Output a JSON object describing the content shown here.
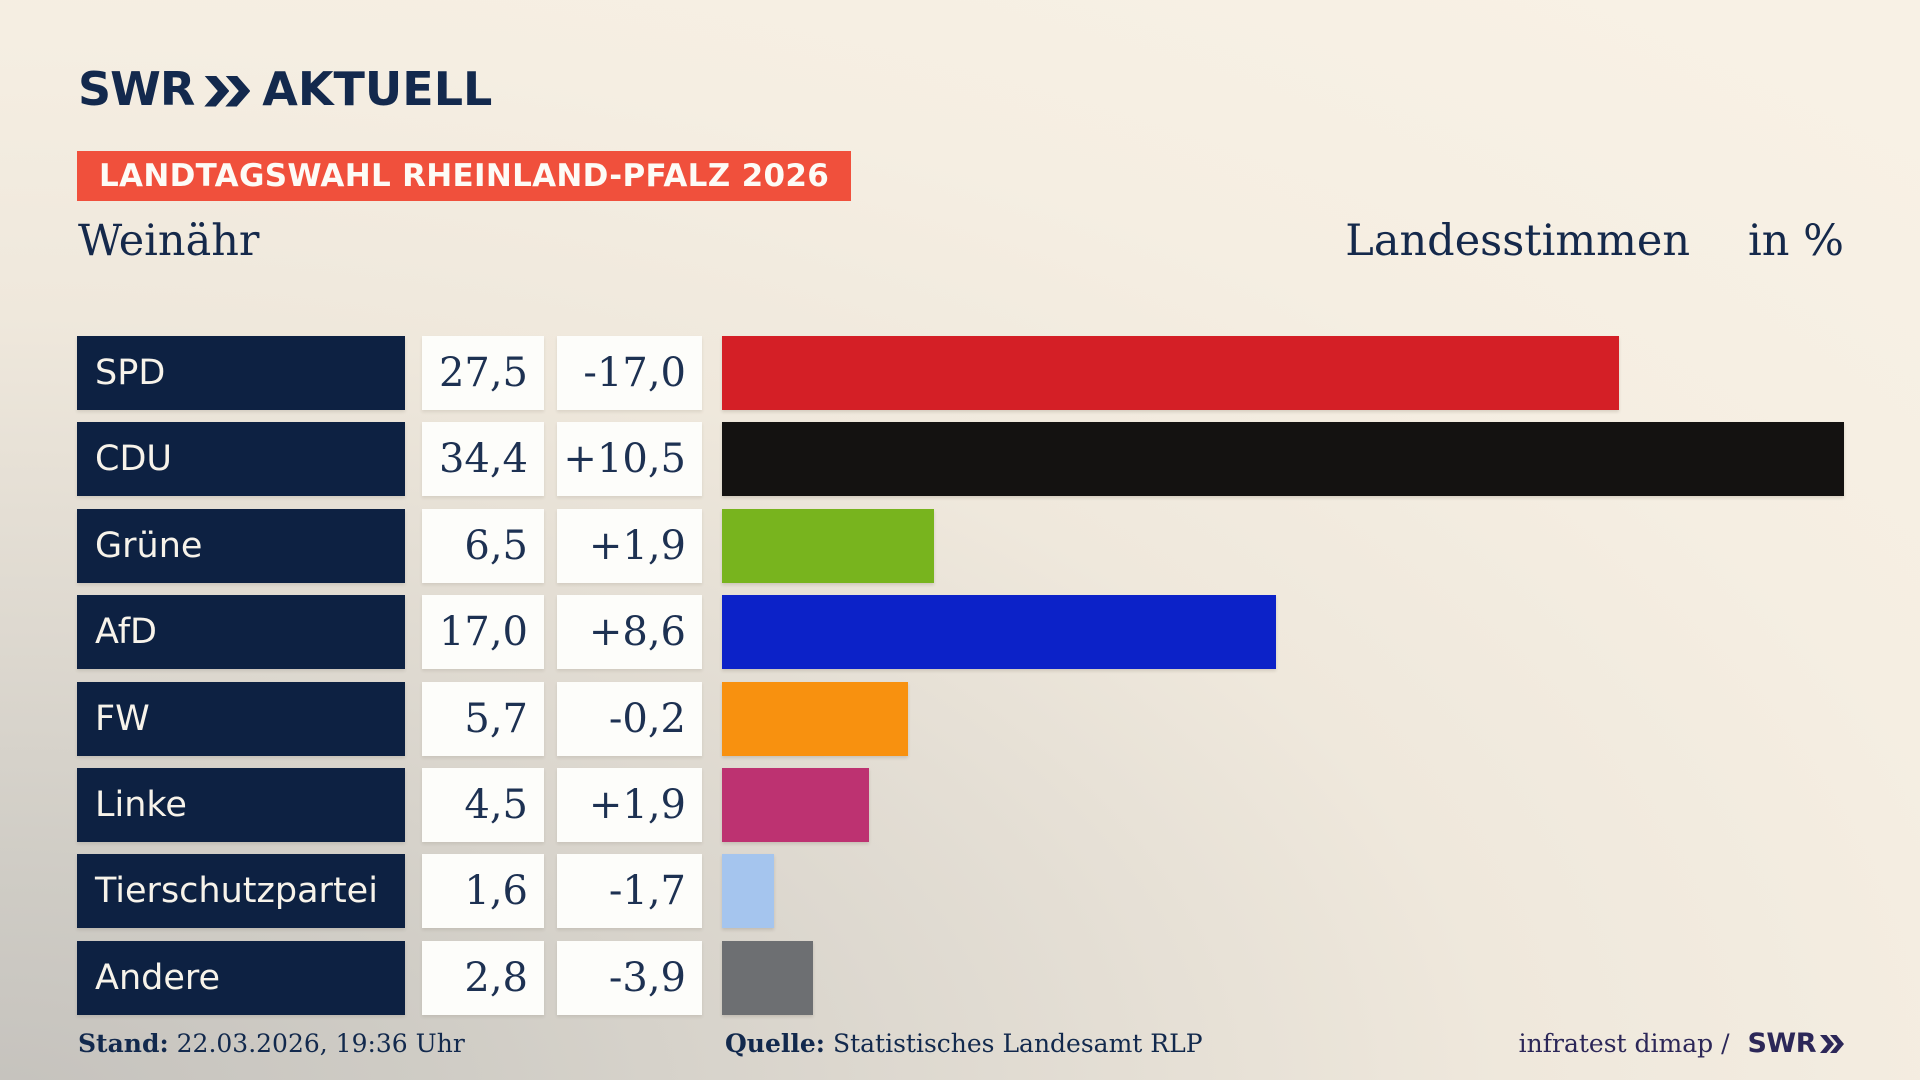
{
  "logo": {
    "brand": "SWR",
    "suffix": "AKTUELL"
  },
  "banner": {
    "label": "LANDTAGSWAHL RHEINLAND-PFALZ 2026"
  },
  "header": {
    "location": "Weinähr",
    "measure": "Landesstimmen",
    "unit": "in %"
  },
  "chart_data": {
    "type": "bar",
    "orientation": "horizontal",
    "title": "Landtagswahl Rheinland-Pfalz 2026 – Weinähr, Landesstimmen in %",
    "unit": "%",
    "value_axis_max": 34.4,
    "categories": [
      "SPD",
      "CDU",
      "Grüne",
      "AfD",
      "FW",
      "Linke",
      "Tierschutzpartei",
      "Andere"
    ],
    "rows": [
      {
        "party": "SPD",
        "value": 27.5,
        "value_label": "27,5",
        "diff_label": "-17,0",
        "color": "#d41f26"
      },
      {
        "party": "CDU",
        "value": 34.4,
        "value_label": "34,4",
        "diff_label": "+10,5",
        "color": "#141211"
      },
      {
        "party": "Grüne",
        "value": 6.5,
        "value_label": "6,5",
        "diff_label": "+1,9",
        "color": "#78b41e"
      },
      {
        "party": "AfD",
        "value": 17.0,
        "value_label": "17,0",
        "diff_label": "+8,6",
        "color": "#0c22c8"
      },
      {
        "party": "FW",
        "value": 5.7,
        "value_label": "5,7",
        "diff_label": "-0,2",
        "color": "#f8910f"
      },
      {
        "party": "Linke",
        "value": 4.5,
        "value_label": "4,5",
        "diff_label": "+1,9",
        "color": "#bd3271"
      },
      {
        "party": "Tierschutzpartei",
        "value": 1.6,
        "value_label": "1,6",
        "diff_label": "-1,7",
        "color": "#a5c5ee"
      },
      {
        "party": "Andere",
        "value": 2.8,
        "value_label": "2,8",
        "diff_label": "-3,9",
        "color": "#6d6f72"
      }
    ]
  },
  "footer": {
    "stand_label": "Stand:",
    "stand_value": " 22.03.2026, 19:36 Uhr",
    "quelle_label": "Quelle:",
    "quelle_value": " Statistisches Landesamt RLP",
    "credit_text": "infratest dimap / ",
    "credit_brand": "SWR"
  },
  "colors": {
    "banner_bg": "#f0503c",
    "party_box_bg": "#0d2142",
    "value_box_bg": "#fdfdfa",
    "text_navy": "#15294b",
    "credit_purple": "#2c2758",
    "background_cream": "#f6efe3",
    "background_gray": "#c5c2bd"
  }
}
